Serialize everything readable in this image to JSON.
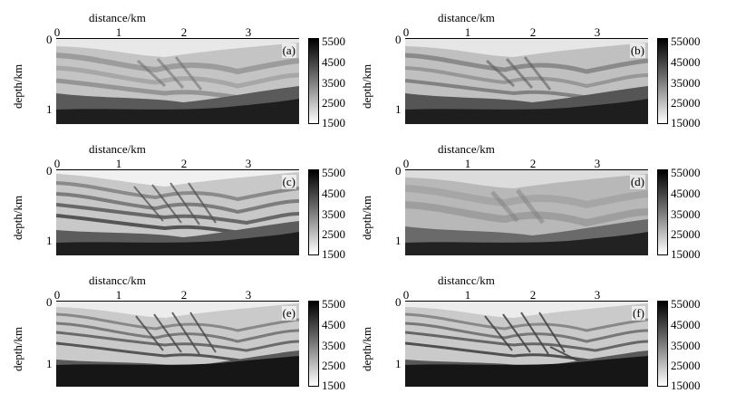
{
  "figure": {
    "x_axis_label": "distance/km",
    "x_axis_label_alt": "distancc/km",
    "y_axis_label": "depth/km",
    "x_ticks": [
      "0",
      "1",
      "2",
      "3"
    ],
    "y_ticks": [
      "0",
      "1"
    ],
    "colorbar_ticks_short": [
      "5500",
      "4500",
      "3500",
      "2500",
      "1500"
    ],
    "colorbar_ticks_long": [
      "55000",
      "45000",
      "35000",
      "25000",
      "15000"
    ],
    "colormap": "grayscale"
  },
  "panels": [
    {
      "tag": "(a)",
      "xlabel": "distance/km",
      "ylabel": "depth/km",
      "cbar": [
        "5500",
        "4500",
        "3500",
        "2500",
        "1500"
      ],
      "description_colors": {
        "light": "#dcdcdc",
        "dark": "#1e1e1e"
      }
    },
    {
      "tag": "(b)",
      "xlabel": "distance/km",
      "ylabel": "depth/km",
      "cbar": [
        "55000",
        "45000",
        "35000",
        "25000",
        "15000"
      ],
      "description_colors": {
        "light": "#dcdcdc",
        "dark": "#1e1e1e"
      }
    },
    {
      "tag": "(c)",
      "xlabel": "distance/km",
      "ylabel": "depth/km",
      "cbar": [
        "5500",
        "4500",
        "3500",
        "2500",
        "1500"
      ],
      "description_colors": {
        "light": "#e8e8e8",
        "dark": "#1e1e1e"
      }
    },
    {
      "tag": "(d)",
      "xlabel": "distance/km",
      "ylabel": "depth/km",
      "cbar": [
        "55000",
        "45000",
        "35000",
        "25000",
        "15000"
      ],
      "description_colors": {
        "light": "#d6d6d6",
        "dark": "#1e1e1e"
      }
    },
    {
      "tag": "(e)",
      "xlabel": "distancc/km",
      "ylabel": "depth/km",
      "cbar": [
        "5500",
        "4500",
        "3500",
        "2500",
        "1500"
      ],
      "description_colors": {
        "light": "#e0e0e0",
        "dark": "#161616"
      }
    },
    {
      "tag": "(f)",
      "xlabel": "distancc/km",
      "ylabel": "depth/km",
      "cbar": [
        "55000",
        "45000",
        "35000",
        "25000",
        "15000"
      ],
      "description_colors": {
        "light": "#e0e0e0",
        "dark": "#161616"
      }
    }
  ]
}
